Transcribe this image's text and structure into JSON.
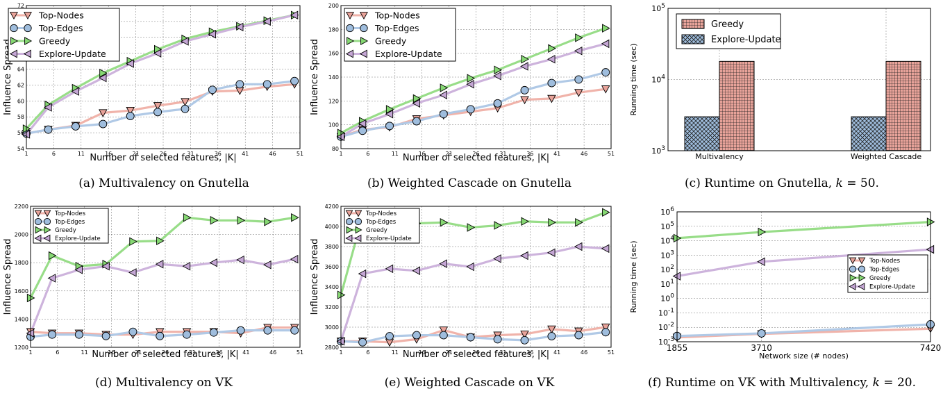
{
  "colors": {
    "top_nodes": "#e8a39a",
    "top_edges": "#9fbddd",
    "greedy": "#86d873",
    "explore_update": "#c4a6d4",
    "top_nodes_line": "#f0b3aa",
    "top_edges_line": "#b0c9e6",
    "greedy_line": "#98dd88",
    "explore_update_line": "#cdb3dc"
  },
  "captions": {
    "a": "(a) Multivalency on Gnutella",
    "b": "(b) Weighted Cascade on Gnutella",
    "c_prefix": "(c) Runtime on Gnutella, ",
    "c_k": "k",
    "c_suffix": " = 50.",
    "d": "(d) Multivalency on VK",
    "e": "(e) Weighted Cascade on VK",
    "f_prefix": "(f) Runtime on VK with Multivalency, ",
    "f_k": "k",
    "f_suffix": " = 20."
  },
  "chart_data": [
    {
      "id": "a",
      "type": "line",
      "xlabel": "Number of selected features, |K|",
      "ylabel": "Influence Spread",
      "xlim": [
        1,
        51
      ],
      "ylim": [
        54,
        72
      ],
      "xticks": [
        1,
        6,
        11,
        16,
        21,
        26,
        31,
        36,
        41,
        46,
        51
      ],
      "yticks": [
        54,
        56,
        58,
        60,
        62,
        64,
        66,
        68,
        70,
        72
      ],
      "legend_position": "top-left",
      "legend_size": "large",
      "grid": true,
      "x": [
        1,
        5,
        10,
        15,
        20,
        25,
        30,
        35,
        40,
        45,
        50
      ],
      "series": [
        {
          "name": "Top-Nodes",
          "marker": "down",
          "values": [
            55.9,
            56.4,
            56.9,
            58.5,
            58.8,
            59.4,
            59.9,
            61.2,
            61.3,
            61.8,
            62.1
          ]
        },
        {
          "name": "Top-Edges",
          "marker": "circle",
          "values": [
            55.9,
            56.4,
            56.8,
            57.1,
            58.1,
            58.6,
            59.0,
            61.4,
            62.1,
            62.1,
            62.5
          ]
        },
        {
          "name": "Greedy",
          "marker": "right",
          "values": [
            56.5,
            59.5,
            61.6,
            63.5,
            65.0,
            66.5,
            67.8,
            68.7,
            69.4,
            70.1,
            70.8
          ]
        },
        {
          "name": "Explore-Update",
          "marker": "left",
          "values": [
            55.8,
            59.2,
            61.2,
            62.9,
            64.7,
            66.0,
            67.5,
            68.4,
            69.3,
            70.0,
            70.8
          ]
        }
      ]
    },
    {
      "id": "b",
      "type": "line",
      "xlabel": "Number of selected features, |K|",
      "ylabel": "Influence Spread",
      "xlim": [
        1,
        51
      ],
      "ylim": [
        80,
        200
      ],
      "xticks": [
        1,
        6,
        11,
        16,
        21,
        26,
        31,
        36,
        41,
        46,
        51
      ],
      "yticks": [
        80,
        100,
        120,
        140,
        160,
        180,
        200
      ],
      "legend_position": "top-left",
      "legend_size": "large",
      "grid": true,
      "x": [
        1,
        5,
        10,
        15,
        20,
        25,
        30,
        35,
        40,
        45,
        50
      ],
      "series": [
        {
          "name": "Top-Nodes",
          "marker": "down",
          "values": [
            90,
            96,
            98,
            105,
            108,
            111,
            114,
            121,
            122,
            127,
            130
          ]
        },
        {
          "name": "Top-Edges",
          "marker": "circle",
          "values": [
            90,
            95,
            99,
            103,
            109,
            113,
            118,
            129,
            135,
            138,
            144
          ]
        },
        {
          "name": "Greedy",
          "marker": "right",
          "values": [
            93,
            103,
            113,
            122,
            131,
            139,
            146,
            155,
            164,
            173,
            181
          ]
        },
        {
          "name": "Explore-Update",
          "marker": "left",
          "values": [
            90,
            101,
            109,
            118,
            125,
            134,
            141,
            149,
            155,
            162,
            168
          ]
        }
      ]
    },
    {
      "id": "c",
      "type": "bar",
      "ylabel": "Running time (sec)",
      "yscale": "log",
      "ylim": [
        1000,
        100000
      ],
      "yticks_exp": [
        3,
        4,
        5
      ],
      "categories": [
        "Multivalency",
        "Weighted Cascade"
      ],
      "legend_position": "top-left",
      "grid": true,
      "series": [
        {
          "name": "Greedy",
          "pattern": "grid",
          "values": [
            18000,
            18000
          ]
        },
        {
          "name": "Explore-Update",
          "pattern": "crosshatch",
          "values": [
            3000,
            3000
          ]
        }
      ]
    },
    {
      "id": "d",
      "type": "line",
      "xlabel": "Number of selected features, |K|",
      "ylabel": "Influence Spread",
      "xlim": [
        1,
        51
      ],
      "ylim": [
        1200,
        2200
      ],
      "xticks": [
        1,
        6,
        11,
        16,
        21,
        26,
        31,
        36,
        41,
        46,
        51
      ],
      "yticks": [
        1200,
        1400,
        1600,
        1800,
        2000,
        2200
      ],
      "legend_position": "top-left",
      "legend_size": "small",
      "grid": true,
      "x": [
        1,
        5,
        10,
        15,
        20,
        25,
        30,
        35,
        40,
        45,
        50
      ],
      "series": [
        {
          "name": "Top-Nodes",
          "marker": "down",
          "values": [
            1310,
            1300,
            1300,
            1290,
            1290,
            1310,
            1310,
            1310,
            1300,
            1340,
            1340
          ]
        },
        {
          "name": "Top-Edges",
          "marker": "circle",
          "values": [
            1275,
            1290,
            1290,
            1280,
            1310,
            1280,
            1290,
            1305,
            1320,
            1320,
            1320
          ]
        },
        {
          "name": "Greedy",
          "marker": "right",
          "values": [
            1550,
            1850,
            1775,
            1790,
            1950,
            1955,
            2120,
            2100,
            2100,
            2090,
            2120
          ]
        },
        {
          "name": "Explore-Update",
          "marker": "left",
          "values": [
            1300,
            1690,
            1750,
            1775,
            1730,
            1790,
            1775,
            1800,
            1820,
            1785,
            1825
          ]
        }
      ]
    },
    {
      "id": "e",
      "type": "line",
      "xlabel": "Number of selected features, |K|",
      "ylabel": "Influence Spread",
      "xlim": [
        1,
        51
      ],
      "ylim": [
        2800,
        4200
      ],
      "xticks": [
        1,
        6,
        11,
        16,
        21,
        26,
        31,
        36,
        41,
        46,
        51
      ],
      "yticks": [
        2800,
        3000,
        3200,
        3400,
        3600,
        3800,
        4000,
        4200
      ],
      "legend_position": "top-left",
      "legend_size": "small",
      "grid": true,
      "x": [
        1,
        5,
        10,
        15,
        20,
        25,
        30,
        35,
        40,
        45,
        50
      ],
      "series": [
        {
          "name": "Top-Nodes",
          "marker": "down",
          "values": [
            2860,
            2860,
            2850,
            2880,
            2970,
            2900,
            2920,
            2930,
            2980,
            2960,
            3000
          ]
        },
        {
          "name": "Top-Edges",
          "marker": "circle",
          "values": [
            2860,
            2850,
            2910,
            2920,
            2920,
            2900,
            2880,
            2870,
            2910,
            2920,
            2950
          ]
        },
        {
          "name": "Greedy",
          "marker": "right",
          "values": [
            3320,
            4100,
            4020,
            4030,
            4040,
            3990,
            4010,
            4050,
            4040,
            4040,
            4140
          ]
        },
        {
          "name": "Explore-Update",
          "marker": "left",
          "values": [
            2860,
            3530,
            3580,
            3560,
            3630,
            3600,
            3680,
            3710,
            3740,
            3800,
            3780
          ]
        }
      ]
    },
    {
      "id": "f",
      "type": "line",
      "xlabel": "Network size (# nodes)",
      "ylabel": "Running time (sec)",
      "yscale": "log",
      "ylim_exp": [
        -3,
        6
      ],
      "xlim": [
        1855,
        7420
      ],
      "xticks": [
        1855,
        3710,
        7420
      ],
      "legend_position": "center-right",
      "legend_size": "small",
      "grid": true,
      "x": [
        1855,
        3710,
        7420
      ],
      "series": [
        {
          "name": "Top-Nodes",
          "marker": "down",
          "values": [
            0.002,
            0.0035,
            0.008
          ]
        },
        {
          "name": "Top-Edges",
          "marker": "circle",
          "values": [
            0.0025,
            0.0038,
            0.016
          ]
        },
        {
          "name": "Greedy",
          "marker": "right",
          "values": [
            15000,
            40000,
            200000
          ]
        },
        {
          "name": "Explore-Update",
          "marker": "left",
          "values": [
            35,
            350,
            2500
          ]
        }
      ]
    }
  ]
}
